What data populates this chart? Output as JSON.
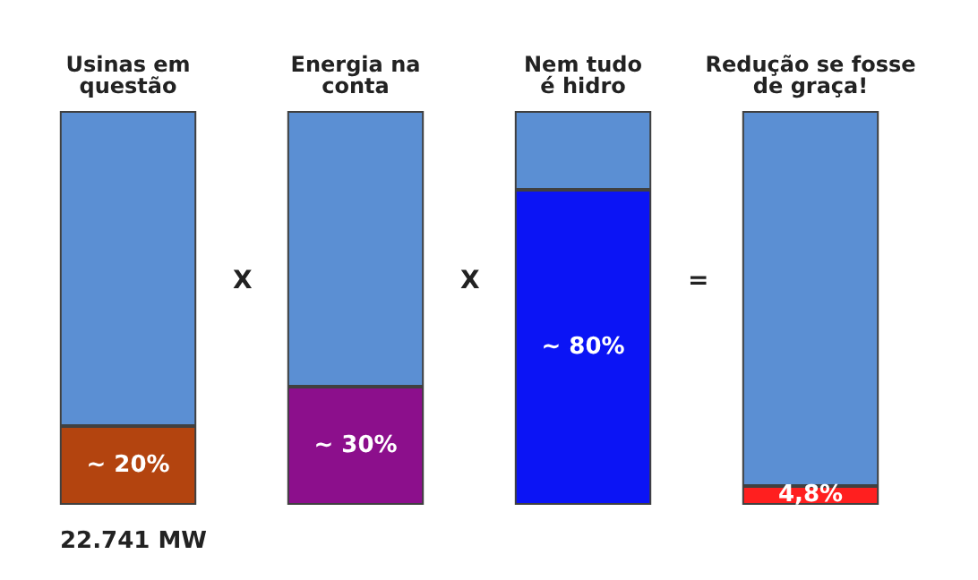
{
  "chart_data": {
    "type": "bar",
    "stacked": true,
    "categories": [
      "Usinas em\nquestão",
      "Energia na\nconta",
      "Nem tudo\né hidro",
      "Redução se fosse\nde graça!"
    ],
    "series": [
      {
        "colors": [
          "#b3440f",
          "#8c0f8c",
          "#0b14f5",
          "#ff1f1f"
        ],
        "values": [
          20,
          30,
          80,
          4.8
        ],
        "value_labels": [
          "~ 20%",
          "~ 30%",
          "~ 80%",
          "4,8%"
        ]
      },
      {
        "color": "#5b8fd3",
        "values": [
          80,
          70,
          20,
          95.2
        ]
      }
    ],
    "annotations": [
      "X",
      "X",
      "=",
      "22.741 MW"
    ],
    "tick_labels": "x"
  }
}
